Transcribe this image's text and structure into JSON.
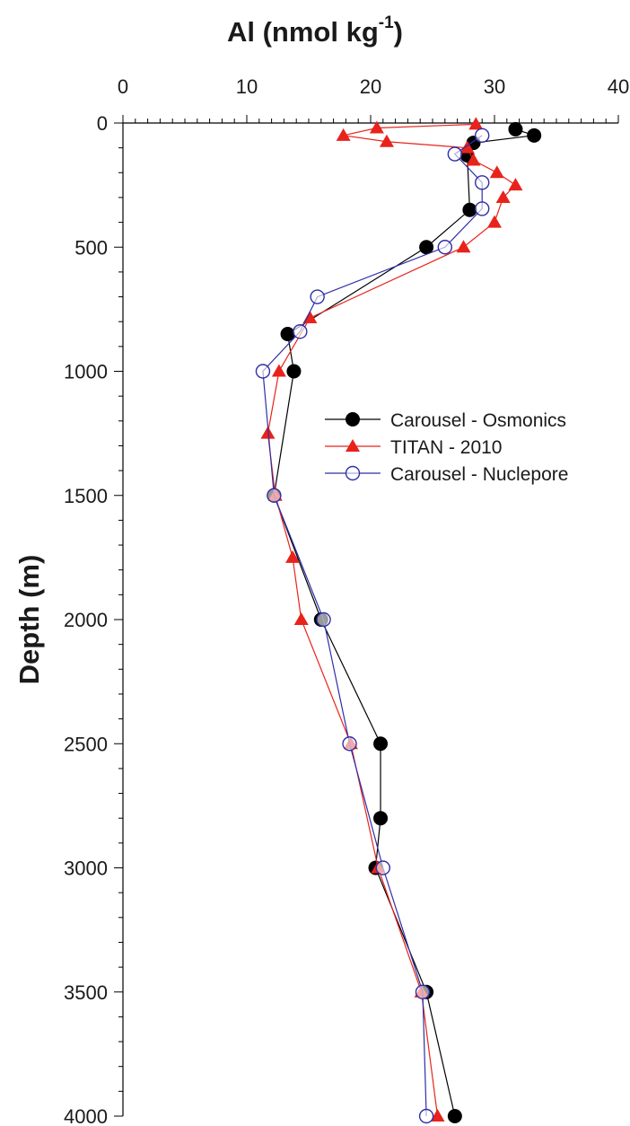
{
  "chart_data": {
    "type": "line",
    "title_main": "Al (nmol kg",
    "title_sup": "-1",
    "title_close": ")",
    "xlabel": "Al (nmol kg-1)",
    "ylabel": "Depth (m)",
    "xlim": [
      0,
      40
    ],
    "ylim": [
      4000,
      0
    ],
    "x_axis_position": "top",
    "y_inverted": true,
    "x_ticks": [
      0,
      10,
      20,
      30,
      40
    ],
    "y_ticks": [
      0,
      500,
      1000,
      1500,
      2000,
      2500,
      3000,
      3500,
      4000
    ],
    "grid": false,
    "legend_position": "center-right",
    "series": [
      {
        "name": "Carousel - Osmonics",
        "color": "#000000",
        "marker": "filled-circle",
        "points": [
          {
            "x": 31.7,
            "y": 25
          },
          {
            "x": 33.2,
            "y": 50
          },
          {
            "x": 28.3,
            "y": 80
          },
          {
            "x": 27.8,
            "y": 130
          },
          {
            "x": 28.0,
            "y": 350
          },
          {
            "x": 24.5,
            "y": 500
          },
          {
            "x": 13.3,
            "y": 850
          },
          {
            "x": 13.8,
            "y": 1000
          },
          {
            "x": 12.2,
            "y": 1500
          },
          {
            "x": 16.0,
            "y": 2000
          },
          {
            "x": 20.8,
            "y": 2500
          },
          {
            "x": 20.8,
            "y": 2800
          },
          {
            "x": 20.4,
            "y": 3000
          },
          {
            "x": 24.5,
            "y": 3500
          },
          {
            "x": 26.8,
            "y": 4000
          }
        ]
      },
      {
        "name": "TITAN - 2010",
        "color": "#e8231b",
        "marker": "filled-triangle",
        "points": [
          {
            "x": 28.5,
            "y": 5
          },
          {
            "x": 20.5,
            "y": 20
          },
          {
            "x": 17.8,
            "y": 50
          },
          {
            "x": 21.3,
            "y": 75
          },
          {
            "x": 27.8,
            "y": 100
          },
          {
            "x": 28.3,
            "y": 150
          },
          {
            "x": 30.2,
            "y": 200
          },
          {
            "x": 31.7,
            "y": 250
          },
          {
            "x": 30.7,
            "y": 300
          },
          {
            "x": 30.0,
            "y": 400
          },
          {
            "x": 27.5,
            "y": 500
          },
          {
            "x": 15.1,
            "y": 785
          },
          {
            "x": 12.6,
            "y": 1000
          },
          {
            "x": 11.7,
            "y": 1250
          },
          {
            "x": 12.3,
            "y": 1500
          },
          {
            "x": 13.7,
            "y": 1750
          },
          {
            "x": 14.4,
            "y": 2000
          },
          {
            "x": 18.4,
            "y": 2500
          },
          {
            "x": 20.6,
            "y": 3000
          },
          {
            "x": 24.1,
            "y": 3500
          },
          {
            "x": 25.4,
            "y": 4000
          }
        ]
      },
      {
        "name": "Carousel -  Nuclepore",
        "color": "#2e2ea8",
        "marker": "open-circle",
        "points": [
          {
            "x": 29.0,
            "y": 50
          },
          {
            "x": 26.8,
            "y": 125
          },
          {
            "x": 29.0,
            "y": 240
          },
          {
            "x": 29.0,
            "y": 345
          },
          {
            "x": 26.0,
            "y": 500
          },
          {
            "x": 15.7,
            "y": 700
          },
          {
            "x": 14.3,
            "y": 840
          },
          {
            "x": 11.3,
            "y": 1000
          },
          {
            "x": 12.2,
            "y": 1500
          },
          {
            "x": 16.2,
            "y": 2000
          },
          {
            "x": 18.3,
            "y": 2500
          },
          {
            "x": 21.0,
            "y": 3000
          },
          {
            "x": 24.2,
            "y": 3500
          },
          {
            "x": 24.5,
            "y": 4000
          }
        ]
      }
    ]
  }
}
